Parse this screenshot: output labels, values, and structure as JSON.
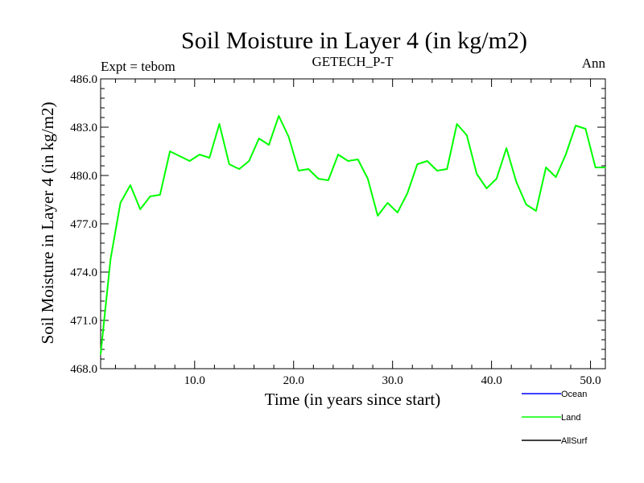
{
  "chart_data": {
    "type": "line",
    "title": "Soil Moisture in Layer 4 (in kg/m2)",
    "subtitle_left": "Expt = tebom",
    "subtitle_center": "GETECH_P-T",
    "subtitle_right": "Ann",
    "xlabel": "Time (in years since start)",
    "ylabel": "Soil Moisture in Layer 4 (in kg/m2)",
    "xlim": [
      0.5,
      51.5
    ],
    "ylim": [
      468.0,
      486.0
    ],
    "xticks": [
      10,
      20,
      30,
      40,
      50
    ],
    "xtick_labels": [
      "10.0",
      "20.0",
      "30.0",
      "40.0",
      "50.0"
    ],
    "yticks": [
      468,
      471,
      474,
      477,
      480,
      483,
      486
    ],
    "ytick_labels": [
      "468.0",
      "471.0",
      "474.0",
      "477.0",
      "480.0",
      "483.0",
      "486.0"
    ],
    "legend": [
      {
        "name": "Ocean",
        "color": "#0000ff"
      },
      {
        "name": "Land",
        "color": "#00ff00"
      },
      {
        "name": "AllSurf",
        "color": "#000000"
      }
    ],
    "series": [
      {
        "name": "Land",
        "color": "#00ff00",
        "x": [
          0.5,
          1.5,
          2.5,
          3.5,
          4.5,
          5.5,
          6.5,
          7.5,
          8.5,
          9.5,
          10.5,
          11.5,
          12.5,
          13.5,
          14.5,
          15.5,
          16.5,
          17.5,
          18.5,
          19.5,
          20.5,
          21.5,
          22.5,
          23.5,
          24.5,
          25.5,
          26.5,
          27.5,
          28.5,
          29.5,
          30.5,
          31.5,
          32.5,
          33.5,
          34.5,
          35.5,
          36.5,
          37.5,
          38.5,
          39.5,
          40.5,
          41.5,
          42.5,
          43.5,
          44.5,
          45.5,
          46.5,
          47.5,
          48.5,
          49.5,
          50.5,
          51.5
        ],
        "values": [
          468.9,
          474.8,
          478.3,
          479.4,
          477.9,
          478.7,
          478.8,
          481.5,
          481.2,
          480.9,
          481.3,
          481.1,
          483.2,
          480.7,
          480.4,
          480.9,
          482.3,
          481.9,
          483.7,
          482.4,
          480.3,
          480.4,
          479.8,
          479.7,
          481.3,
          480.9,
          481.0,
          479.8,
          477.5,
          478.3,
          477.7,
          478.9,
          480.7,
          480.9,
          480.3,
          480.4,
          483.2,
          482.5,
          480.1,
          479.2,
          479.8,
          481.7,
          479.6,
          478.2,
          477.8,
          480.5,
          479.9,
          481.3,
          483.1,
          482.9,
          480.5,
          480.5
        ]
      }
    ]
  }
}
